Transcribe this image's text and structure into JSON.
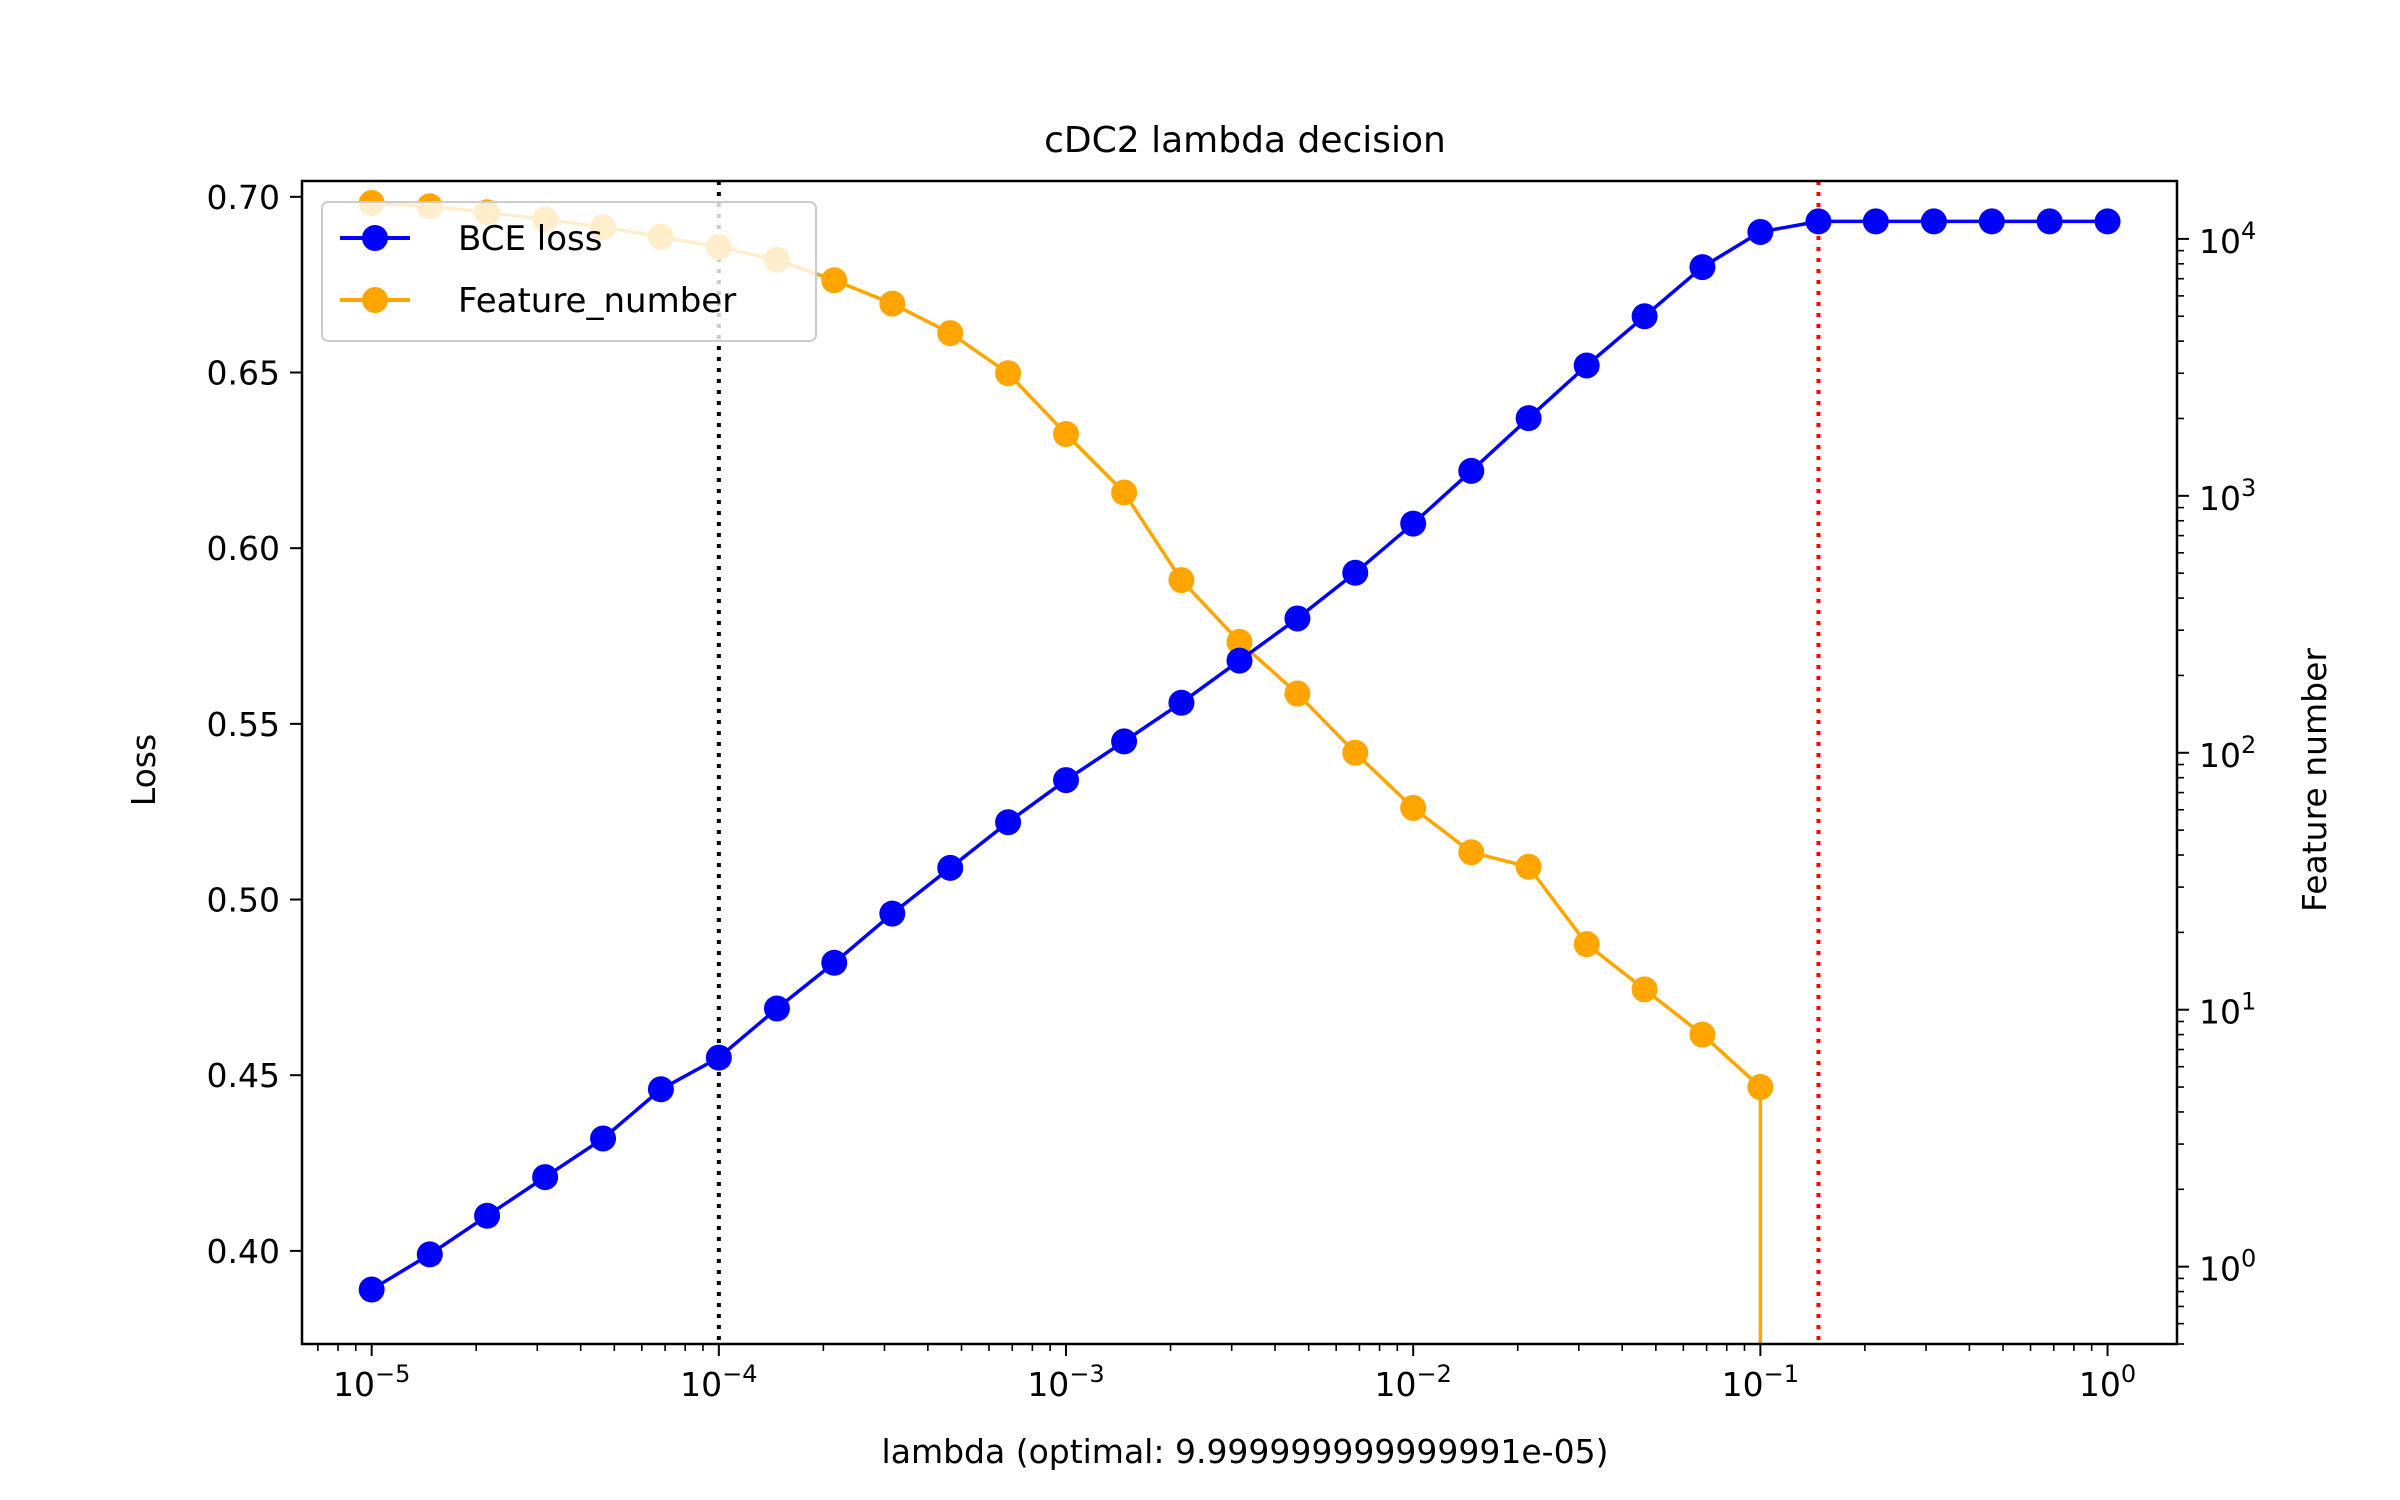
{
  "chart_data": {
    "type": "line",
    "title": "cDC2 lambda decision",
    "xlabel": "lambda (optimal: 9.999999999999991e-05)",
    "ylabel": "Loss",
    "y2label": "Feature number",
    "xscale": "log",
    "xlim": [
      6.3e-06,
      1.585
    ],
    "ylim": [
      0.3735,
      0.7045
    ],
    "y2scale": "log",
    "y2lim": [
      0.5,
      16800
    ],
    "grid": false,
    "legend_position": "top-left",
    "x_ticks": [
      {
        "value": 1e-05,
        "base": "10",
        "exp": "−5"
      },
      {
        "value": 0.0001,
        "base": "10",
        "exp": "−4"
      },
      {
        "value": 0.001,
        "base": "10",
        "exp": "−3"
      },
      {
        "value": 0.01,
        "base": "10",
        "exp": "−2"
      },
      {
        "value": 0.1,
        "base": "10",
        "exp": "−1"
      },
      {
        "value": 1,
        "base": "10",
        "exp": "0"
      }
    ],
    "y_ticks": [
      {
        "value": 0.4,
        "label": "0.40"
      },
      {
        "value": 0.45,
        "label": "0.45"
      },
      {
        "value": 0.5,
        "label": "0.50"
      },
      {
        "value": 0.55,
        "label": "0.55"
      },
      {
        "value": 0.6,
        "label": "0.60"
      },
      {
        "value": 0.65,
        "label": "0.65"
      },
      {
        "value": 0.7,
        "label": "0.70"
      }
    ],
    "y2_ticks": [
      {
        "value": 1,
        "base": "10",
        "exp": "0"
      },
      {
        "value": 10,
        "base": "10",
        "exp": "1"
      },
      {
        "value": 100,
        "base": "10",
        "exp": "2"
      },
      {
        "value": 1000,
        "base": "10",
        "exp": "3"
      },
      {
        "value": 10000,
        "base": "10",
        "exp": "4"
      }
    ],
    "x": [
      1e-05,
      1.47e-05,
      2.15e-05,
      3.16e-05,
      4.64e-05,
      6.81e-05,
      0.0001,
      0.000147,
      0.000215,
      0.000316,
      0.000464,
      0.000681,
      0.001,
      0.00147,
      0.00215,
      0.00316,
      0.00464,
      0.00681,
      0.01,
      0.0147,
      0.0215,
      0.0316,
      0.0464,
      0.0681,
      0.1,
      0.147,
      0.215,
      0.316,
      0.464,
      0.681,
      1
    ],
    "series": [
      {
        "name": "BCE loss",
        "axis": "left",
        "color": "#0000ff",
        "values": [
          0.389,
          0.399,
          0.41,
          0.421,
          0.432,
          0.446,
          0.455,
          0.469,
          0.482,
          0.496,
          0.509,
          0.522,
          0.534,
          0.545,
          0.556,
          0.568,
          0.58,
          0.593,
          0.607,
          0.622,
          0.637,
          0.652,
          0.666,
          0.68,
          0.69,
          0.693,
          0.693,
          0.693,
          0.693,
          0.693,
          0.693
        ]
      },
      {
        "name": "Feature_number",
        "axis": "right",
        "color": "#ffa500",
        "x": [
          1e-05,
          1.47e-05,
          2.15e-05,
          3.16e-05,
          4.64e-05,
          6.81e-05,
          0.0001,
          0.000147,
          0.000215,
          0.000316,
          0.000464,
          0.000681,
          0.001,
          0.00147,
          0.00215,
          0.00316,
          0.00464,
          0.00681,
          0.01,
          0.0147,
          0.0215,
          0.0316,
          0.0464,
          0.0681,
          0.1
        ],
        "values": [
          13800,
          13400,
          12700,
          11900,
          11100,
          10200,
          9300,
          8300,
          6900,
          5600,
          4300,
          3000,
          1740,
          1030,
          470,
          270,
          170,
          100,
          61,
          41,
          36,
          18,
          12,
          8,
          5
        ],
        "drop_to_zero_at": 0.1
      }
    ],
    "reference_lines": [
      {
        "x": 0.0001,
        "color": "#000000",
        "style": "dotted"
      },
      {
        "x": 0.147,
        "color": "#ff0000",
        "style": "dotted"
      }
    ]
  }
}
